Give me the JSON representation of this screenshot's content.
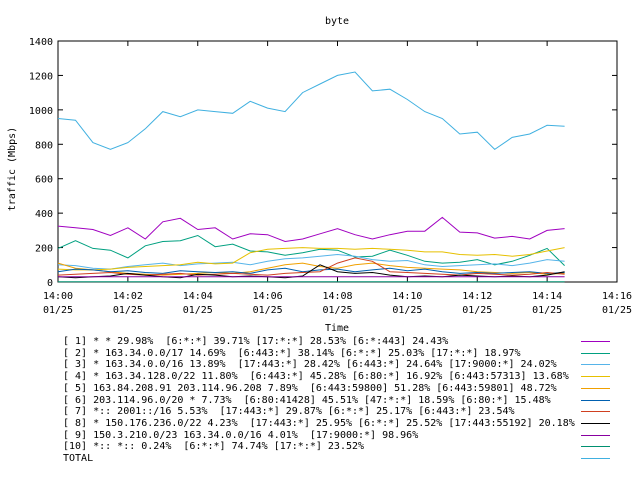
{
  "chart_data": {
    "type": "line",
    "title": "byte",
    "xlabel": "Time",
    "ylabel": "traffic (Mbps)",
    "ylim": [
      0,
      1400
    ],
    "yticks": [
      0,
      200,
      400,
      600,
      800,
      1000,
      1200,
      1400
    ],
    "xlim": [
      "14:00",
      "14:16"
    ],
    "xticks": [
      {
        "time": "14:00",
        "date": "01/25"
      },
      {
        "time": "14:02",
        "date": "01/25"
      },
      {
        "time": "14:04",
        "date": "01/25"
      },
      {
        "time": "14:06",
        "date": "01/25"
      },
      {
        "time": "14:08",
        "date": "01/25"
      },
      {
        "time": "14:10",
        "date": "01/25"
      },
      {
        "time": "14:12",
        "date": "01/25"
      },
      {
        "time": "14:14",
        "date": "01/25"
      },
      {
        "time": "14:16",
        "date": "01/25"
      }
    ],
    "x": [
      "14:00:00",
      "14:00:30",
      "14:01:00",
      "14:01:30",
      "14:02:00",
      "14:02:30",
      "14:03:00",
      "14:03:30",
      "14:04:00",
      "14:04:30",
      "14:05:00",
      "14:05:30",
      "14:06:00",
      "14:06:30",
      "14:07:00",
      "14:07:30",
      "14:08:00",
      "14:08:30",
      "14:09:00",
      "14:09:30",
      "14:10:00",
      "14:10:30",
      "14:11:00",
      "14:11:30",
      "14:12:00",
      "14:12:30",
      "14:13:00",
      "14:13:30",
      "14:14:00",
      "14:14:30"
    ],
    "series": [
      {
        "name": "[ 1] * * 29.98%  [6:*:*] 39.71% [17:*:*] 28.53% [6:*:443] 24.43%",
        "color": "#a000c0",
        "values": [
          325,
          315,
          305,
          270,
          315,
          250,
          350,
          370,
          305,
          315,
          250,
          280,
          275,
          235,
          250,
          280,
          310,
          275,
          250,
          275,
          295,
          295,
          375,
          290,
          285,
          255,
          265,
          250,
          300,
          310
        ]
      },
      {
        "name": "[ 2] * 163.34.0.0/17 14.69%  [6:443:*] 38.14% [6:*:*] 25.03% [17:*:*] 18.97%",
        "color": "#00a080",
        "values": [
          195,
          240,
          195,
          185,
          140,
          210,
          235,
          240,
          270,
          205,
          220,
          180,
          175,
          155,
          170,
          190,
          185,
          145,
          150,
          185,
          155,
          120,
          110,
          115,
          130,
          100,
          120,
          155,
          195,
          95
        ]
      },
      {
        "name": "[ 3] * 163.34.0.0/16 13.89%  [17:443:*] 28.42% [6:443:*] 24.64% [17:9000:*] 24.02%",
        "color": "#56b4e9",
        "values": [
          100,
          95,
          80,
          75,
          90,
          100,
          110,
          95,
          105,
          110,
          115,
          100,
          120,
          135,
          140,
          150,
          160,
          150,
          130,
          120,
          125,
          100,
          90,
          95,
          100,
          105,
          95,
          110,
          130,
          120
        ]
      },
      {
        "name": "[ 4] * 163.34.128.0/22 11.80%  [6:443:*] 45.28% [6:80:*] 16.92% [6:443:57313] 13.68%",
        "color": "#e6c000",
        "values": [
          75,
          70,
          70,
          75,
          85,
          90,
          95,
          100,
          115,
          105,
          110,
          170,
          190,
          195,
          200,
          195,
          195,
          190,
          195,
          190,
          185,
          175,
          175,
          160,
          155,
          160,
          150,
          160,
          180,
          200
        ]
      },
      {
        "name": "[ 5] 163.84.208.91 203.114.96.208 7.89%  [6:443:59800] 51.28% [6:443:59801] 48.72%",
        "color": "#f0a000",
        "values": [
          110,
          80,
          70,
          60,
          50,
          45,
          40,
          45,
          50,
          55,
          50,
          60,
          80,
          100,
          110,
          90,
          80,
          100,
          110,
          95,
          85,
          80,
          75,
          70,
          60,
          55,
          50,
          55,
          45,
          50
        ]
      },
      {
        "name": "[ 6] 203.114.96.0/20 * 7.73%  [6:80:41428] 45.51% [47:*:*] 18.59% [6:80:*] 15.48%",
        "color": "#0060b0",
        "values": [
          60,
          75,
          70,
          60,
          65,
          55,
          50,
          65,
          60,
          55,
          60,
          50,
          70,
          80,
          60,
          70,
          75,
          60,
          70,
          80,
          65,
          75,
          60,
          50,
          55,
          50,
          55,
          60,
          50,
          55
        ]
      },
      {
        "name": "[ 7] *:: 2001::/16 5.53%  [17:443:*] 29.87% [6:*:*] 25.17% [6:443:*] 23.54%",
        "color": "#d04020",
        "values": [
          40,
          45,
          50,
          55,
          45,
          40,
          45,
          50,
          40,
          45,
          50,
          45,
          40,
          50,
          55,
          60,
          110,
          140,
          120,
          60,
          55,
          50,
          45,
          40,
          50,
          45,
          40,
          45,
          55,
          45
        ]
      },
      {
        "name": "[ 8] * 150.176.236.0/22 4.23%  [17:443:*] 25.95% [6:*:*] 25.52% [17:443:55192] 20.18%",
        "color": "#000000",
        "values": [
          30,
          25,
          30,
          35,
          50,
          40,
          30,
          25,
          45,
          40,
          30,
          35,
          30,
          25,
          35,
          100,
          60,
          50,
          55,
          40,
          30,
          35,
          30,
          40,
          35,
          30,
          35,
          30,
          40,
          60
        ]
      },
      {
        "name": "[ 9] 150.3.210.0/23 163.34.0.0/16 4.01%  [17:9000:*] 98.96%",
        "color": "#8800a0",
        "values": [
          30,
          30,
          30,
          30,
          30,
          30,
          30,
          30,
          30,
          30,
          30,
          30,
          30,
          30,
          30,
          30,
          30,
          30,
          30,
          30,
          30,
          30,
          30,
          30,
          30,
          30,
          30,
          30,
          30,
          30
        ]
      },
      {
        "name": "[10] *:: *:: 0.24%  [6:*:*] 74.74% [17:*:*] 23.52%",
        "color": "#009070",
        "values": [
          2,
          2,
          2,
          2,
          2,
          2,
          2,
          2,
          2,
          2,
          2,
          2,
          2,
          2,
          2,
          2,
          2,
          2,
          2,
          2,
          2,
          2,
          2,
          2,
          2,
          2,
          2,
          2,
          2,
          2
        ]
      },
      {
        "name": "TOTAL",
        "color": "#40b0e0",
        "values": [
          950,
          940,
          810,
          770,
          810,
          890,
          990,
          960,
          1000,
          990,
          980,
          1050,
          1010,
          990,
          1100,
          1150,
          1200,
          1220,
          1110,
          1120,
          1060,
          990,
          950,
          860,
          870,
          770,
          840,
          860,
          910,
          905
        ]
      }
    ],
    "grid": false,
    "legend_position": "bottom"
  }
}
